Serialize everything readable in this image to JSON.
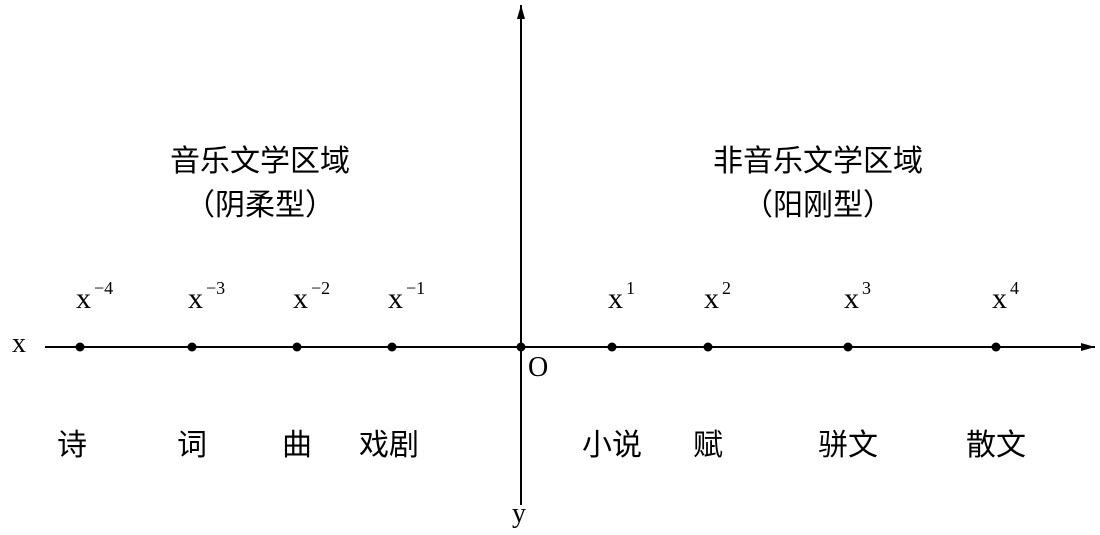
{
  "axes": {
    "x_label": "x",
    "y_label": "y",
    "origin_label": "O"
  },
  "regions": {
    "left": {
      "title": "音乐文学区域",
      "subtitle": "（阴柔型）"
    },
    "right": {
      "title": "非音乐文学区域",
      "subtitle": "（阳刚型）"
    }
  },
  "points": [
    {
      "base": "x",
      "exp": "−4",
      "label": "诗"
    },
    {
      "base": "x",
      "exp": "−3",
      "label": "词"
    },
    {
      "base": "x",
      "exp": "−2",
      "label": "曲"
    },
    {
      "base": "x",
      "exp": "−1",
      "label": "戏剧"
    },
    {
      "base": "x",
      "exp": "1",
      "label": "小说"
    },
    {
      "base": "x",
      "exp": "2",
      "label": "赋"
    },
    {
      "base": "x",
      "exp": "3",
      "label": "骈文"
    },
    {
      "base": "x",
      "exp": "4",
      "label": "散文"
    }
  ]
}
